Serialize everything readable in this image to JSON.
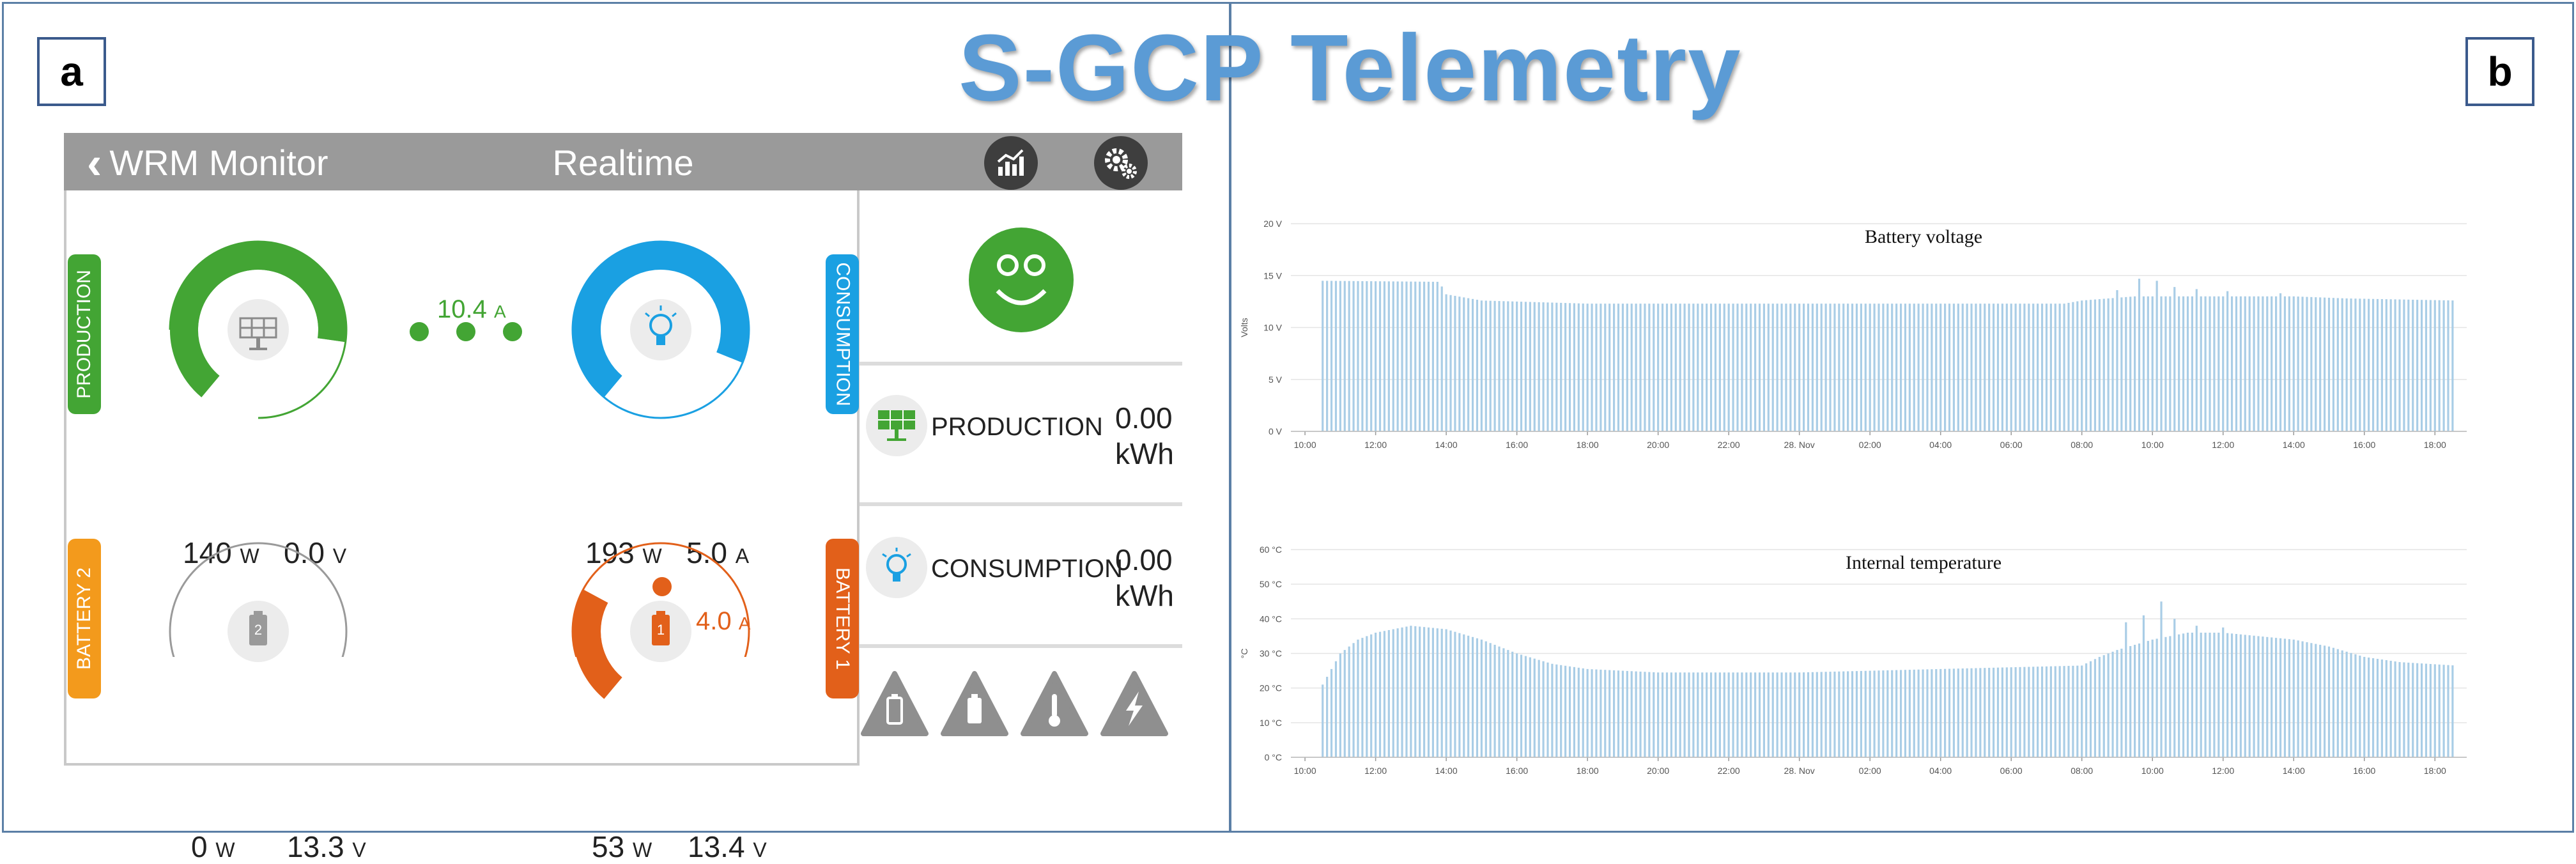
{
  "figure": {
    "title": "S-GCP Telemetry",
    "panel_a_label": "a",
    "panel_b_label": "b"
  },
  "app": {
    "back_label": "WRM Monitor",
    "title": "Realtime",
    "header_icons": [
      "chart-icon",
      "gears-icon"
    ],
    "status_face": "smiley-face-icon",
    "colors": {
      "production": "#43a534",
      "consumption": "#1aa0e2",
      "battery1": "#e2601a",
      "battery2": "#f39a1c",
      "header": "#9a9a9a"
    },
    "production": {
      "tab": "PRODUCTION",
      "power": "140",
      "power_unit": "W",
      "voltage": "0.0",
      "voltage_unit": "V",
      "fill": 0.85
    },
    "consumption": {
      "tab": "CONSUMPTION",
      "power": "193",
      "power_unit": "W",
      "current": "5.0",
      "current_unit": "A",
      "fill": 0.9
    },
    "battery2": {
      "tab": "BATTERY 2",
      "icon_number": "2",
      "power": "0",
      "power_unit": "W",
      "voltage": "13.3",
      "voltage_unit": "V",
      "fill": 0.0
    },
    "battery1": {
      "tab": "BATTERY 1",
      "icon_number": "1",
      "power": "53",
      "power_unit": "W",
      "voltage": "13.4",
      "voltage_unit": "V",
      "fill": 0.28
    },
    "flow_production_consumption": {
      "value": "10.4",
      "unit": "A"
    },
    "flow_battery": {
      "value": "4.0",
      "unit": "A"
    },
    "energy_rows": [
      {
        "icon": "solar-panel-icon",
        "label": "PRODUCTION",
        "value": "0.00",
        "unit": "kWh"
      },
      {
        "icon": "lightbulb-icon",
        "label": "CONSUMPTION",
        "value": "0.00",
        "unit": "kWh"
      }
    ],
    "warning_icons": [
      "battery-warning-icon",
      "battery-full-warning-icon",
      "thermometer-warning-icon",
      "lightning-warning-icon"
    ]
  },
  "chart_data": [
    {
      "type": "bar",
      "title": "Battery voltage",
      "ylabel": "Volts",
      "y_ticks": [
        "0 V",
        "5 V",
        "10 V",
        "15 V",
        "20 V"
      ],
      "ylim": [
        0,
        20
      ],
      "x_ticks": [
        "10:00",
        "12:00",
        "14:00",
        "16:00",
        "18:00",
        "20:00",
        "22:00",
        "28. Nov",
        "02:00",
        "04:00",
        "06:00",
        "08:00",
        "10:00",
        "12:00",
        "14:00",
        "16:00",
        "18:00"
      ],
      "x_hours": [
        10,
        12,
        14,
        16,
        18,
        20,
        22,
        24,
        26,
        28,
        30,
        32,
        34,
        36,
        38,
        40,
        42
      ],
      "x_range": [
        9.6,
        42.9
      ],
      "color": "#a9cde6",
      "grid": true,
      "profile": [
        [
          10.5,
          14.5
        ],
        [
          13.8,
          14.4
        ],
        [
          14.0,
          13.2
        ],
        [
          15.0,
          12.6
        ],
        [
          18.0,
          12.3
        ],
        [
          24.0,
          12.3
        ],
        [
          31.5,
          12.3
        ],
        [
          32.0,
          12.6
        ],
        [
          33.5,
          13.0
        ],
        [
          34.0,
          13.0
        ],
        [
          36.0,
          13.0
        ],
        [
          38.0,
          13.0
        ],
        [
          39.5,
          12.8
        ],
        [
          42.6,
          12.6
        ]
      ],
      "spikes": [
        [
          33.0,
          13.6
        ],
        [
          33.6,
          14.7
        ],
        [
          34.1,
          14.5
        ],
        [
          34.6,
          13.9
        ],
        [
          35.2,
          13.7
        ],
        [
          36.1,
          13.5
        ],
        [
          37.6,
          13.3
        ]
      ]
    },
    {
      "type": "bar",
      "title": "Internal temperature",
      "ylabel": "°C",
      "y_ticks": [
        "0 °C",
        "10 °C",
        "20 °C",
        "30 °C",
        "40 °C",
        "50 °C",
        "60 °C"
      ],
      "ylim": [
        0,
        60
      ],
      "x_ticks": [
        "10:00",
        "12:00",
        "14:00",
        "16:00",
        "18:00",
        "20:00",
        "22:00",
        "28. Nov",
        "02:00",
        "04:00",
        "06:00",
        "08:00",
        "10:00",
        "12:00",
        "14:00",
        "16:00",
        "18:00"
      ],
      "x_hours": [
        10,
        12,
        14,
        16,
        18,
        20,
        22,
        24,
        26,
        28,
        30,
        32,
        34,
        36,
        38,
        40,
        42
      ],
      "x_range": [
        9.6,
        42.9
      ],
      "color": "#a9cde6",
      "grid": true,
      "profile": [
        [
          10.5,
          21
        ],
        [
          11.0,
          30
        ],
        [
          11.5,
          34
        ],
        [
          12.0,
          36
        ],
        [
          13.0,
          38
        ],
        [
          14.0,
          37
        ],
        [
          15.0,
          34
        ],
        [
          16.0,
          30
        ],
        [
          17.0,
          27
        ],
        [
          18.0,
          25.5
        ],
        [
          20.0,
          24.5
        ],
        [
          24.0,
          24.5
        ],
        [
          26.0,
          25
        ],
        [
          30.0,
          26
        ],
        [
          32.0,
          26.5
        ],
        [
          32.5,
          29
        ],
        [
          33.0,
          31
        ],
        [
          34.0,
          34
        ],
        [
          35.0,
          36
        ],
        [
          36.0,
          36
        ],
        [
          37.0,
          35
        ],
        [
          38.0,
          34
        ],
        [
          39.0,
          32
        ],
        [
          40.0,
          29
        ],
        [
          41.0,
          27.5
        ],
        [
          42.6,
          26.5
        ]
      ],
      "spikes": [
        [
          33.3,
          39
        ],
        [
          33.7,
          41
        ],
        [
          34.2,
          45
        ],
        [
          34.6,
          40
        ],
        [
          35.3,
          38
        ],
        [
          36.0,
          37.5
        ]
      ]
    }
  ]
}
